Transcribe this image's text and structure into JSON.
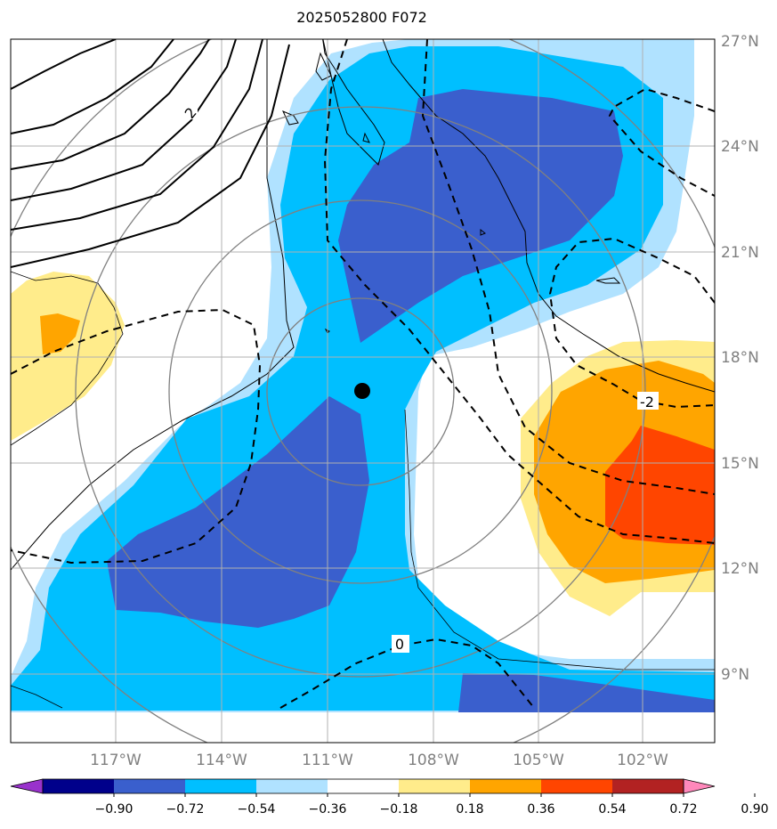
{
  "title": "2025052800 F072",
  "map": {
    "lat_labels": [
      "27°N",
      "24°N",
      "21°N",
      "18°N",
      "15°N",
      "12°N",
      "9°N"
    ],
    "lon_labels": [
      "117°W",
      "114°W",
      "111°W",
      "108°W",
      "105°W",
      "102°W"
    ],
    "lat_range": [
      7,
      27
    ],
    "lon_range": [
      -120,
      -100
    ],
    "contour_labels": [
      "2",
      "-2",
      "0"
    ],
    "storm_center": {
      "lat": 17,
      "lon": -110
    }
  },
  "colorbar": {
    "ticks": [
      "−0.90",
      "−0.72",
      "−0.54",
      "−0.36",
      "−0.18",
      "0.18",
      "0.36",
      "0.54",
      "0.72",
      "0.90"
    ],
    "colors": [
      "#9932cc",
      "#00008b",
      "#3a5fcd",
      "#00bfff",
      "#b0e2ff",
      "#ffffff",
      "#ffec8b",
      "#ffa500",
      "#ff4500",
      "#b22222",
      "#ff88bb"
    ]
  },
  "colors": {
    "grid": "#b0b0b0",
    "range_rings": "#808080",
    "storm_marker": "#000000"
  }
}
